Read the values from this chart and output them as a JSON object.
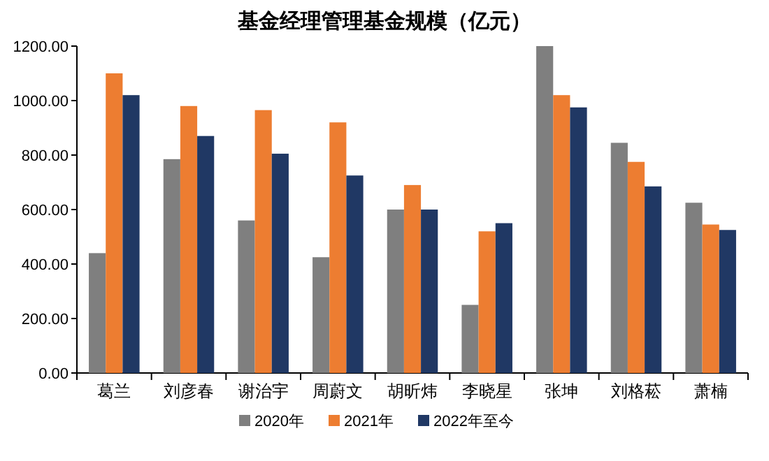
{
  "chart_data": {
    "type": "bar",
    "title": "基金经理管理基金规模（亿元）",
    "categories": [
      "葛兰",
      "刘彦春",
      "谢治宇",
      "周蔚文",
      "胡昕炜",
      "李晓星",
      "张坤",
      "刘格菘",
      "萧楠"
    ],
    "series": [
      {
        "name": "2020年",
        "color": "#7f7f7f",
        "values": [
          440,
          785,
          560,
          425,
          600,
          250,
          1200,
          845,
          625
        ]
      },
      {
        "name": "2021年",
        "color": "#ed7d31",
        "values": [
          1100,
          980,
          965,
          920,
          690,
          520,
          1020,
          775,
          545
        ]
      },
      {
        "name": "2022年至今",
        "color": "#203864",
        "values": [
          1020,
          870,
          805,
          725,
          600,
          550,
          975,
          685,
          525
        ]
      }
    ],
    "ylim": [
      0,
      1200
    ],
    "yticks": [
      {
        "value": 0,
        "label": "0.00"
      },
      {
        "value": 200,
        "label": "200.00"
      },
      {
        "value": 400,
        "label": "400.00"
      },
      {
        "value": 600,
        "label": "600.00"
      },
      {
        "value": 800,
        "label": "800.00"
      },
      {
        "value": 1000,
        "label": "1000.00"
      },
      {
        "value": 1200,
        "label": "1200.00"
      }
    ],
    "legend": "bottom"
  }
}
